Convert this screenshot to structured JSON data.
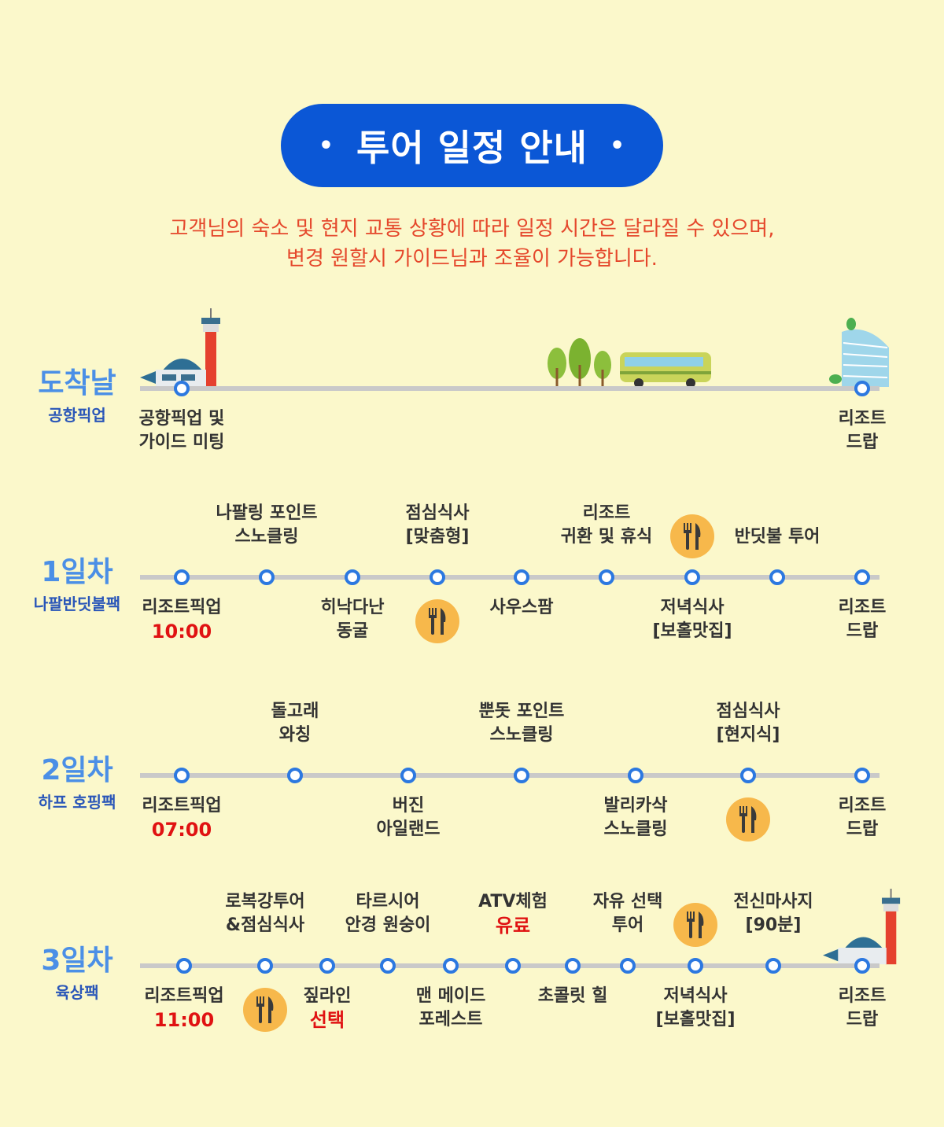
{
  "header": {
    "title": "투어 일정 안내",
    "bullet": "•"
  },
  "notice": [
    "고객님의 숙소 및 현지 교통 상황에 따라 일정 시간은 달라질 수 있으며,",
    "변경 원할시 가이드님과 조율이 가능합니다."
  ],
  "colors": {
    "background": "#fbf8cb",
    "badge": "#0b57d6",
    "notice": "#e5482c",
    "day_title": "#4b8fe6",
    "node": "#2c78e0",
    "highlight": "#e01212",
    "meal_icon": "#f7b84b"
  },
  "days": [
    {
      "title": "도착날",
      "subtitle": "공항픽업",
      "stops": [
        {
          "above": [],
          "below": [
            {
              "text": "공항픽업 및"
            },
            {
              "text": "가이드 미팅"
            }
          ]
        },
        {
          "above": [],
          "below": [
            {
              "text": "리조트"
            },
            {
              "text": "드랍"
            }
          ]
        }
      ]
    },
    {
      "title": "1일차",
      "subtitle": "나팔반딧불팩",
      "stops": [
        {
          "above": [],
          "below": [
            {
              "text": "리조트픽업"
            },
            {
              "text": "10:00",
              "red": true
            }
          ]
        },
        {
          "above": [
            {
              "text": "나팔링 포인트"
            },
            {
              "text": "스노클링"
            }
          ],
          "below": []
        },
        {
          "above": [],
          "below": [
            {
              "text": "히낙다난"
            },
            {
              "text": "동굴"
            }
          ]
        },
        {
          "above": [
            {
              "text": "점심식사"
            },
            {
              "text": "[맞춤형]"
            }
          ],
          "below": [],
          "meal_below": true
        },
        {
          "above": [],
          "below": [
            {
              "text": "사우스팜"
            }
          ]
        },
        {
          "above": [
            {
              "text": "리조트"
            },
            {
              "text": "귀환 및 휴식"
            }
          ],
          "below": []
        },
        {
          "above": [],
          "below": [
            {
              "text": "저녁식사"
            },
            {
              "text": "[보홀맛집]"
            }
          ],
          "meal_above": true
        },
        {
          "above": [
            {
              "text": "반딧불 투어"
            }
          ],
          "below": []
        },
        {
          "above": [],
          "below": [
            {
              "text": "리조트"
            },
            {
              "text": "드랍"
            }
          ]
        }
      ]
    },
    {
      "title": "2일차",
      "subtitle": "하프 호핑팩",
      "stops": [
        {
          "above": [],
          "below": [
            {
              "text": "리조트픽업"
            },
            {
              "text": "07:00",
              "red": true
            }
          ]
        },
        {
          "above": [
            {
              "text": "돌고래"
            },
            {
              "text": "와칭"
            }
          ],
          "below": []
        },
        {
          "above": [],
          "below": [
            {
              "text": "버진"
            },
            {
              "text": "아일랜드"
            }
          ]
        },
        {
          "above": [
            {
              "text": "뿐돗 포인트"
            },
            {
              "text": "스노클링"
            }
          ],
          "below": []
        },
        {
          "above": [],
          "below": [
            {
              "text": "발리카삭"
            },
            {
              "text": "스노클링"
            }
          ]
        },
        {
          "above": [
            {
              "text": "점심식사"
            },
            {
              "text": "[현지식]"
            }
          ],
          "below": [],
          "meal_below": true
        },
        {
          "above": [],
          "below": [
            {
              "text": "리조트"
            },
            {
              "text": "드랍"
            }
          ]
        }
      ]
    },
    {
      "title": "3일차",
      "subtitle": "육상팩",
      "stops": [
        {
          "above": [],
          "below": [
            {
              "text": "리조트픽업"
            },
            {
              "text": "11:00",
              "red": true
            }
          ]
        },
        {
          "above": [
            {
              "text": "로복강투어"
            },
            {
              "text": "&점심식사"
            }
          ],
          "below": [],
          "meal_below": true
        },
        {
          "above": [],
          "below": [
            {
              "text": "짚라인"
            },
            {
              "text": "선택",
              "red": true
            }
          ]
        },
        {
          "above": [
            {
              "text": "타르시어"
            },
            {
              "text": "안경 원숭이"
            }
          ],
          "below": []
        },
        {
          "above": [],
          "below": [
            {
              "text": "맨 메이드"
            },
            {
              "text": "포레스트"
            }
          ]
        },
        {
          "above": [
            {
              "text": "ATV체험"
            },
            {
              "text": "유료",
              "red": true
            }
          ],
          "below": []
        },
        {
          "above": [],
          "below": [
            {
              "text": "초콜릿 힐"
            }
          ]
        },
        {
          "above": [
            {
              "text": "자유 선택"
            },
            {
              "text": "투어"
            }
          ],
          "below": []
        },
        {
          "above": [],
          "below": [
            {
              "text": "저녁식사"
            },
            {
              "text": "[보홀맛집]"
            }
          ],
          "meal_above": true
        },
        {
          "above": [
            {
              "text": "전신마사지"
            },
            {
              "text": "[90분]"
            }
          ],
          "below": []
        },
        {
          "above": [],
          "below": [
            {
              "text": "리조트"
            },
            {
              "text": "드랍"
            }
          ]
        }
      ]
    }
  ]
}
